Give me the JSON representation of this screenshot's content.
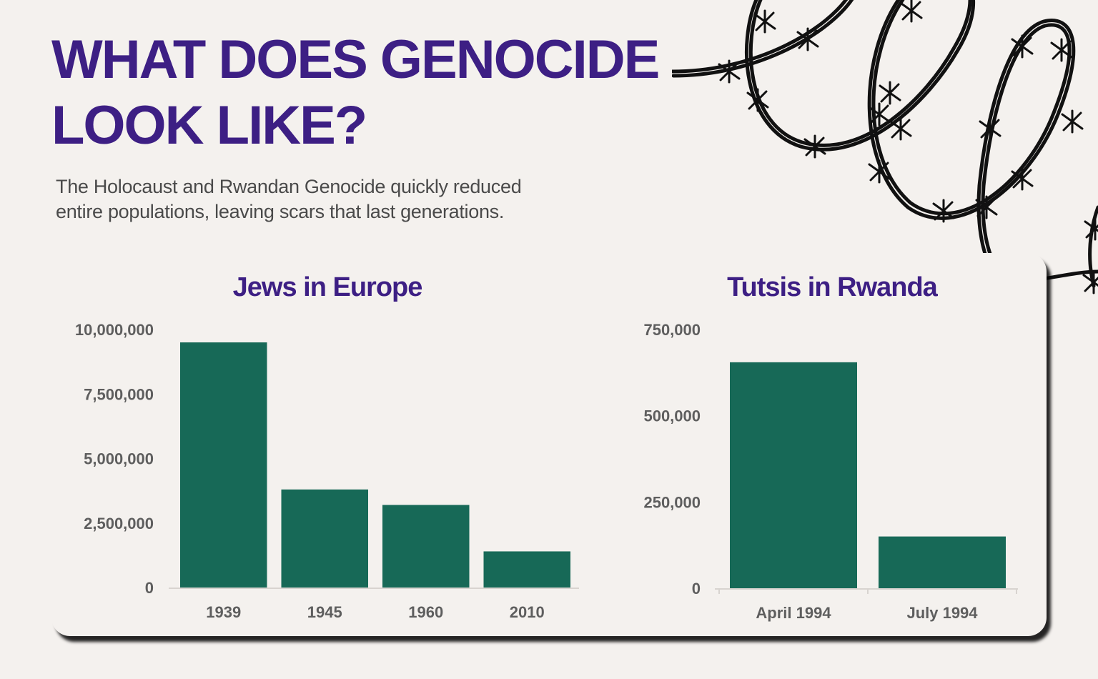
{
  "header": {
    "title_line1": "WHAT DOES GENOCIDE",
    "title_line2": "LOOK LIKE?",
    "subtitle_line1": "The Holocaust and Rwandan Genocide quickly reduced",
    "subtitle_line2": "entire populations, leaving scars that last generations."
  },
  "colors": {
    "bar": "#176957",
    "title": "#3d1f84",
    "text": "#5e5e5e"
  },
  "decoration": {
    "icon": "barbed-wire-icon"
  },
  "chart_data": [
    {
      "type": "bar",
      "title": "Jews in Europe",
      "categories": [
        "1939",
        "1945",
        "1960",
        "2010"
      ],
      "values": [
        9500000,
        3800000,
        3200000,
        1400000
      ],
      "ylim": [
        0,
        10000000
      ],
      "yticks": [
        0,
        2500000,
        5000000,
        7500000,
        10000000
      ],
      "ytick_labels": [
        "0",
        "2,500,000",
        "5,000,000",
        "7,500,000",
        "10,000,000"
      ],
      "grid": false,
      "legend": "none"
    },
    {
      "type": "bar",
      "title": "Tutsis in Rwanda",
      "categories": [
        "April 1994",
        "July 1994"
      ],
      "values": [
        655000,
        150000
      ],
      "ylim": [
        0,
        750000
      ],
      "yticks": [
        0,
        250000,
        500000,
        750000
      ],
      "ytick_labels": [
        "0",
        "250,000",
        "500,000",
        "750,000"
      ],
      "grid": false,
      "legend": "none"
    }
  ]
}
